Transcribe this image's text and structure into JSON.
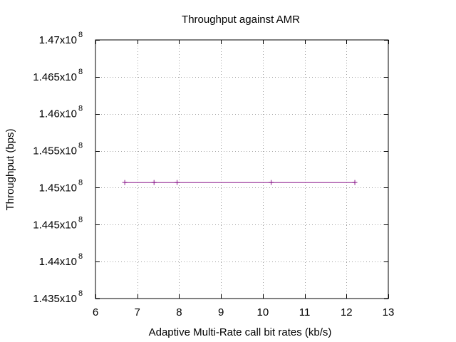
{
  "chart_data": {
    "type": "line",
    "title": "Throughput  against AMR",
    "xlabel": "Adaptive Multi-Rate call bit rates (kb/s)",
    "ylabel": "Throughput (bps)",
    "xlim": [
      6,
      13
    ],
    "ylim": [
      143500000,
      147000000
    ],
    "x_ticks": [
      6,
      7,
      8,
      9,
      10,
      11,
      12,
      13
    ],
    "x_tick_labels": [
      "6",
      "7",
      "8",
      "9",
      "10",
      "11",
      "12",
      "13"
    ],
    "y_ticks": [
      143500000,
      144000000,
      144500000,
      145000000,
      145500000,
      146000000,
      146500000,
      147000000
    ],
    "y_tick_labels": [
      {
        "mantissa": "1.435x10",
        "exponent": "8"
      },
      {
        "mantissa": "1.44x10",
        "exponent": "8"
      },
      {
        "mantissa": "1.445x10",
        "exponent": "8"
      },
      {
        "mantissa": "1.45x10",
        "exponent": "8"
      },
      {
        "mantissa": "1.455x10",
        "exponent": "8"
      },
      {
        "mantissa": "1.46x10",
        "exponent": "8"
      },
      {
        "mantissa": "1.465x10",
        "exponent": "8"
      },
      {
        "mantissa": "1.47x10",
        "exponent": "8"
      }
    ],
    "grid": true,
    "series": [
      {
        "color": "#8b1a8b",
        "marker": "plus",
        "x": [
          6.7,
          7.4,
          7.95,
          10.2,
          12.2
        ],
        "y": [
          145070000,
          145070000,
          145070000,
          145070000,
          145070000
        ]
      }
    ]
  }
}
